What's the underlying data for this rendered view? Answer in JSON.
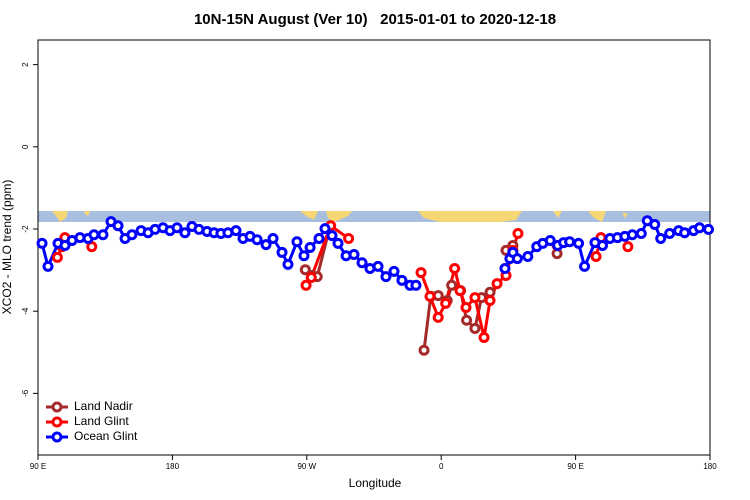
{
  "chart_data": {
    "type": "line",
    "title": "10N-15N August (Ver 10)   2015-01-01 to 2020-12-18",
    "xlabel": "Longitude",
    "ylabel": "XCO2 - MLO trend (ppm)",
    "xlim": [
      90,
      540
    ],
    "ylim": [
      -7.5,
      2.6
    ],
    "xticks": [
      {
        "value": 90,
        "label": "90 E"
      },
      180,
      {
        "value": 270,
        "label": "90 W"
      },
      {
        "value": 360,
        "label": "0"
      },
      {
        "value": 450,
        "label": "90 E"
      },
      {
        "value": 540,
        "label": "180"
      }
    ],
    "yticks": [
      2,
      0,
      -2,
      -4,
      -6
    ],
    "legend": "bottom-left",
    "series": [
      {
        "name": "Land Nadir",
        "color": "#a52a2a",
        "x": [
          269,
          273.5,
          277,
          285.5,
          null,
          348.5,
          353,
          358,
          364,
          367,
          373,
          377,
          382.6,
          387,
          392.7,
          null,
          403.4,
          408,
          null,
          437.6
        ],
        "values": [
          -2.99,
          -3.13,
          -3.16,
          -1.94,
          null,
          -4.95,
          -3.64,
          -3.62,
          -3.74,
          -3.37,
          -3.5,
          -4.22,
          -4.42,
          -3.67,
          -3.54,
          null,
          -2.52,
          -2.4,
          null,
          -2.6
        ]
      },
      {
        "name": "Land Glint",
        "color": "#ff0000",
        "x": [
          103,
          106,
          108,
          null,
          126,
          null,
          269.5,
          273,
          286,
          298,
          null,
          346.5,
          352.5,
          358,
          363,
          369,
          372.6,
          376.6,
          382.6,
          388.7,
          392.7,
          397.4,
          403.4,
          408,
          411.4,
          null,
          437.6,
          null,
          463.7,
          467,
          null,
          485
        ],
        "values": [
          -2.69,
          -2.43,
          -2.21,
          null,
          -2.43,
          null,
          -3.37,
          -3.18,
          -1.92,
          -2.23,
          null,
          -3.06,
          -3.64,
          -4.15,
          -3.81,
          -2.96,
          -3.5,
          -3.91,
          -3.67,
          -4.64,
          -3.74,
          -3.33,
          -3.13,
          -2.52,
          -2.11,
          null,
          -2.4,
          null,
          -2.67,
          -2.21,
          null,
          -2.43
        ]
      },
      {
        "name": "Ocean Glint",
        "color": "#0000ff",
        "x": [
          92.7,
          96.7,
          103.4,
          108.1,
          112.8,
          118.1,
          123.5,
          127.5,
          133.5,
          138.9,
          143.6,
          148.3,
          152.9,
          159,
          163.7,
          168.4,
          173.7,
          178.4,
          183.1,
          188.4,
          193.1,
          197.8,
          203.2,
          207.9,
          212.5,
          217.2,
          222.6,
          227.3,
          232,
          236.7,
          242.7,
          247.4,
          253.4,
          257.4,
          263.4,
          268.1,
          272.2,
          278.2,
          282.2,
          286.9,
          290.9,
          296.3,
          301.6,
          307,
          312.3,
          317.7,
          323,
          328.4,
          333.7,
          339.1,
          343.1,
          null,
          402.7,
          406,
          408,
          411,
          418,
          424,
          428,
          433,
          438,
          442,
          446,
          452,
          456,
          463,
          468,
          473,
          478,
          483,
          488,
          494,
          498,
          503,
          507,
          513,
          519,
          523,
          529,
          533,
          539
        ],
        "values": [
          -2.35,
          -2.91,
          -2.35,
          -2.4,
          -2.28,
          -2.21,
          -2.23,
          -2.14,
          -2.14,
          -1.82,
          -1.92,
          -2.23,
          -2.14,
          -2.04,
          -2.09,
          -2.01,
          -1.97,
          -2.04,
          -1.97,
          -2.09,
          -1.94,
          -2.01,
          -2.06,
          -2.09,
          -2.11,
          -2.09,
          -2.04,
          -2.23,
          -2.18,
          -2.26,
          -2.38,
          -2.23,
          -2.57,
          -2.86,
          -2.31,
          -2.65,
          -2.45,
          -2.23,
          -1.99,
          -2.16,
          -2.35,
          -2.65,
          -2.62,
          -2.82,
          -2.96,
          -2.91,
          -3.16,
          -3.03,
          -3.25,
          -3.37,
          -3.37,
          null,
          -2.96,
          -2.72,
          -2.57,
          -2.72,
          -2.67,
          -2.43,
          -2.35,
          -2.28,
          -2.4,
          -2.33,
          -2.31,
          -2.35,
          -2.91,
          -2.33,
          -2.4,
          -2.23,
          -2.21,
          -2.18,
          -2.14,
          -2.11,
          -1.8,
          -1.89,
          -2.23,
          -2.11,
          -2.04,
          -2.09,
          -2.04,
          -1.97,
          -2.01
        ]
      }
    ]
  }
}
